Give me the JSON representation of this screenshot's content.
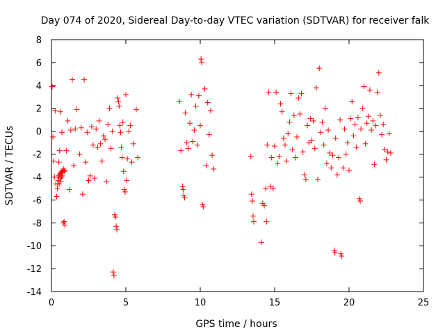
{
  "chart_data": {
    "type": "scatter",
    "title": "Day 074 of 2020, Sidereal Day-to-day VTEC variation (SDTVAR) for receiver falk",
    "xlabel": "GPS time / hours",
    "ylabel": "SDTVAR / TECUs",
    "xlim": [
      0,
      25
    ],
    "ylim": [
      -14,
      8
    ],
    "xticks": [
      0,
      5,
      10,
      15,
      20,
      25
    ],
    "yticks": [
      -14,
      -12,
      -10,
      -8,
      -6,
      -4,
      -2,
      0,
      2,
      4,
      6,
      8
    ],
    "grid": false,
    "marker": "+",
    "color": "#ff0000",
    "series": [
      {
        "name": "SDTVAR",
        "points": [
          [
            0.05,
            3.9
          ],
          [
            0.1,
            -0.5
          ],
          [
            0.15,
            -2.6
          ],
          [
            0.2,
            -4.0
          ],
          [
            0.25,
            1.8
          ],
          [
            0.3,
            -4.6
          ],
          [
            0.35,
            -5.7
          ],
          [
            0.4,
            -5.0
          ],
          [
            0.42,
            -4.6
          ],
          [
            0.45,
            -4.3
          ],
          [
            0.48,
            -4.0
          ],
          [
            0.5,
            -3.9
          ],
          [
            0.52,
            -4.6
          ],
          [
            0.55,
            -3.8
          ],
          [
            0.58,
            -4.1
          ],
          [
            0.6,
            -3.7
          ],
          [
            0.62,
            -4.4
          ],
          [
            0.65,
            -3.6
          ],
          [
            0.68,
            -4.0
          ],
          [
            0.7,
            -3.5
          ],
          [
            0.72,
            -3.9
          ],
          [
            0.75,
            -3.6
          ],
          [
            0.78,
            -3.4
          ],
          [
            0.8,
            -3.3
          ],
          [
            0.85,
            -3.5
          ],
          [
            0.9,
            -3.4
          ],
          [
            0.5,
            -2.7
          ],
          [
            0.55,
            -1.7
          ],
          [
            0.6,
            1.7
          ],
          [
            0.7,
            -0.1
          ],
          [
            0.85,
            -7.9
          ],
          [
            0.9,
            -8.2
          ],
          [
            0.8,
            -8.0
          ],
          [
            1.0,
            -1.7
          ],
          [
            1.1,
            0.9
          ],
          [
            1.2,
            -5.1
          ],
          [
            1.3,
            0.1
          ],
          [
            1.4,
            4.5
          ],
          [
            1.5,
            -3.0
          ],
          [
            1.6,
            0.2
          ],
          [
            1.7,
            1.9
          ],
          [
            1.9,
            -2.0
          ],
          [
            2.0,
            0.3
          ],
          [
            2.1,
            -5.5
          ],
          [
            2.2,
            4.5
          ],
          [
            2.3,
            -2.7
          ],
          [
            2.4,
            -0.1
          ],
          [
            2.5,
            -4.3
          ],
          [
            2.6,
            -3.9
          ],
          [
            2.7,
            0.4
          ],
          [
            2.8,
            -1.2
          ],
          [
            2.9,
            -4.1
          ],
          [
            3.0,
            0.2
          ],
          [
            3.1,
            -1.4
          ],
          [
            3.2,
            0.9
          ],
          [
            3.3,
            -1.1
          ],
          [
            3.4,
            -2.6
          ],
          [
            3.5,
            -0.4
          ],
          [
            3.6,
            -0.7
          ],
          [
            3.7,
            -4.4
          ],
          [
            3.8,
            0.6
          ],
          [
            3.9,
            2.0
          ],
          [
            4.0,
            -1.5
          ],
          [
            4.1,
            0.0
          ],
          [
            4.15,
            -12.3
          ],
          [
            4.2,
            -12.6
          ],
          [
            4.25,
            -7.3
          ],
          [
            4.3,
            -7.5
          ],
          [
            4.35,
            -8.3
          ],
          [
            4.4,
            -8.6
          ],
          [
            4.45,
            2.9
          ],
          [
            4.5,
            2.6
          ],
          [
            4.55,
            2.2
          ],
          [
            4.6,
            0.5
          ],
          [
            4.65,
            -0.1
          ],
          [
            4.7,
            -1.4
          ],
          [
            4.75,
            -2.3
          ],
          [
            4.8,
            0.8
          ],
          [
            4.85,
            -3.5
          ],
          [
            4.9,
            -5.1
          ],
          [
            4.95,
            -5.3
          ],
          [
            5.0,
            3.2
          ],
          [
            5.05,
            -4.3
          ],
          [
            5.1,
            -2.4
          ],
          [
            5.2,
            0.0
          ],
          [
            5.3,
            0.5
          ],
          [
            5.4,
            -2.7
          ],
          [
            5.5,
            -1.1
          ],
          [
            5.7,
            1.9
          ],
          [
            5.8,
            -2.3
          ],
          [
            8.6,
            2.6
          ],
          [
            8.7,
            -1.7
          ],
          [
            8.8,
            -4.8
          ],
          [
            8.85,
            -5.1
          ],
          [
            8.9,
            -5.6
          ],
          [
            8.95,
            -5.8
          ],
          [
            9.0,
            1.6
          ],
          [
            9.1,
            -1.0
          ],
          [
            9.2,
            -1.5
          ],
          [
            9.3,
            0.7
          ],
          [
            9.4,
            3.2
          ],
          [
            9.5,
            -0.9
          ],
          [
            9.6,
            0.1
          ],
          [
            9.7,
            2.2
          ],
          [
            9.8,
            -1.2
          ],
          [
            9.9,
            3.1
          ],
          [
            10.0,
            0.5
          ],
          [
            10.05,
            6.3
          ],
          [
            10.1,
            6.0
          ],
          [
            10.15,
            -6.4
          ],
          [
            10.2,
            -6.6
          ],
          [
            10.3,
            3.7
          ],
          [
            10.4,
            -3.0
          ],
          [
            10.5,
            2.5
          ],
          [
            10.6,
            -0.3
          ],
          [
            10.7,
            1.8
          ],
          [
            10.8,
            -2.1
          ],
          [
            10.9,
            -3.3
          ],
          [
            13.4,
            -2.2
          ],
          [
            13.45,
            -5.5
          ],
          [
            13.5,
            -6.1
          ],
          [
            13.55,
            -7.4
          ],
          [
            13.6,
            -7.9
          ],
          [
            14.1,
            -9.7
          ],
          [
            14.2,
            -6.3
          ],
          [
            14.3,
            -6.5
          ],
          [
            14.4,
            -5.0
          ],
          [
            14.45,
            -7.9
          ],
          [
            14.5,
            -1.2
          ],
          [
            14.6,
            3.4
          ],
          [
            14.7,
            -4.8
          ],
          [
            14.8,
            -2.3
          ],
          [
            14.9,
            -5.0
          ],
          [
            15.0,
            -1.3
          ],
          [
            15.1,
            3.4
          ],
          [
            15.2,
            -2.8
          ],
          [
            15.3,
            -2.2
          ],
          [
            15.4,
            2.4
          ],
          [
            15.5,
            1.7
          ],
          [
            15.6,
            -0.6
          ],
          [
            15.7,
            -1.2
          ],
          [
            15.8,
            -2.6
          ],
          [
            15.9,
            -0.2
          ],
          [
            16.0,
            0.8
          ],
          [
            16.1,
            3.3
          ],
          [
            16.2,
            -1.6
          ],
          [
            16.3,
            1.4
          ],
          [
            16.4,
            -2.3
          ],
          [
            16.5,
            -0.5
          ],
          [
            16.6,
            2.9
          ],
          [
            16.7,
            1.5
          ],
          [
            16.8,
            3.3
          ],
          [
            16.9,
            -1.8
          ],
          [
            17.0,
            -3.8
          ],
          [
            17.1,
            -4.2
          ],
          [
            17.2,
            0.5
          ],
          [
            17.3,
            -1.0
          ],
          [
            17.4,
            1.1
          ],
          [
            17.5,
            -0.8
          ],
          [
            17.6,
            0.9
          ],
          [
            17.7,
            -1.5
          ],
          [
            17.8,
            3.8
          ],
          [
            17.9,
            -4.2
          ],
          [
            18.0,
            5.5
          ],
          [
            18.1,
            -0.1
          ],
          [
            18.2,
            0.8
          ],
          [
            18.3,
            -1.2
          ],
          [
            18.4,
            2.0
          ],
          [
            18.5,
            -2.8
          ],
          [
            18.6,
            0.1
          ],
          [
            18.7,
            -1.9
          ],
          [
            18.8,
            -3.2
          ],
          [
            18.9,
            -2.1
          ],
          [
            19.0,
            -10.4
          ],
          [
            19.05,
            -10.6
          ],
          [
            19.1,
            -0.6
          ],
          [
            19.2,
            -3.8
          ],
          [
            19.3,
            -2.3
          ],
          [
            19.4,
            1.0
          ],
          [
            19.45,
            -10.7
          ],
          [
            19.5,
            -10.9
          ],
          [
            19.6,
            -3.2
          ],
          [
            19.7,
            0.2
          ],
          [
            19.8,
            -2.0
          ],
          [
            19.9,
            -1.0
          ],
          [
            20.0,
            -3.4
          ],
          [
            20.1,
            1.1
          ],
          [
            20.2,
            2.6
          ],
          [
            20.3,
            -0.4
          ],
          [
            20.4,
            0.6
          ],
          [
            20.5,
            -1.4
          ],
          [
            20.6,
            1.2
          ],
          [
            20.7,
            -5.9
          ],
          [
            20.75,
            -6.1
          ],
          [
            20.8,
            0.2
          ],
          [
            20.9,
            2.0
          ],
          [
            21.0,
            3.9
          ],
          [
            21.1,
            -1.1
          ],
          [
            21.2,
            0.7
          ],
          [
            21.3,
            1.3
          ],
          [
            21.4,
            3.6
          ],
          [
            21.5,
            0.1
          ],
          [
            21.6,
            0.9
          ],
          [
            21.7,
            -2.9
          ],
          [
            21.8,
            0.5
          ],
          [
            21.9,
            3.4
          ],
          [
            22.0,
            5.1
          ],
          [
            22.1,
            1.4
          ],
          [
            22.2,
            -0.3
          ],
          [
            22.3,
            0.6
          ],
          [
            22.4,
            -1.6
          ],
          [
            22.5,
            -2.5
          ],
          [
            22.6,
            -1.8
          ],
          [
            22.7,
            -0.2
          ],
          [
            22.8,
            -1.9
          ]
        ]
      }
    ]
  }
}
